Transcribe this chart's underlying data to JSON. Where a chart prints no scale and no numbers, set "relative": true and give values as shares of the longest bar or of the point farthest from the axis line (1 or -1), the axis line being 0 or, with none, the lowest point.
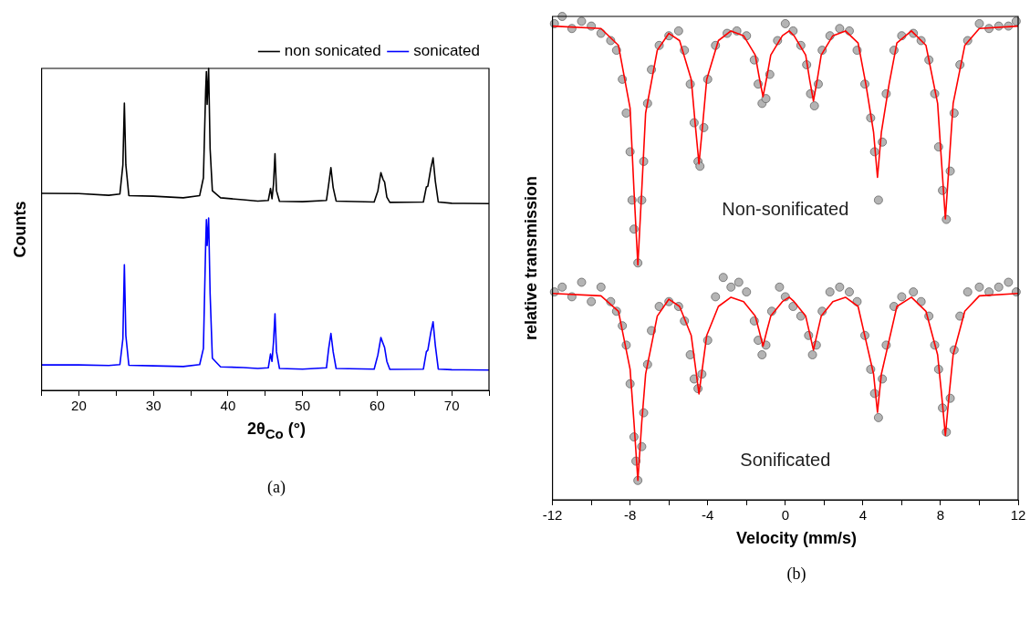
{
  "chart_data": [
    {
      "type": "line",
      "xlabel": "2θ$_{Co}$ (°)",
      "ylabel": "Counts",
      "relative": true,
      "legend": "top right",
      "xlim": [
        15,
        75
      ],
      "xticks": [
        {
          "value": 15,
          "label": null
        },
        20,
        {
          "value": 25,
          "label": null
        },
        30,
        {
          "value": 35,
          "label": null
        },
        40,
        {
          "value": 45,
          "label": null
        },
        50,
        {
          "value": 55,
          "label": null
        },
        60,
        {
          "value": 65,
          "label": null
        },
        70,
        {
          "value": 75,
          "label": null
        }
      ],
      "x": [
        15,
        20,
        24,
        25.5,
        25.9,
        26.1,
        26.3,
        26.7,
        30,
        34,
        36.2,
        36.7,
        37.0,
        37.1,
        37.2,
        37.4,
        37.6,
        37.9,
        39,
        42,
        44,
        45.4,
        45.7,
        45.9,
        46.1,
        46.3,
        46.5,
        46.9,
        50,
        53.2,
        53.5,
        53.8,
        54.1,
        54.5,
        59.6,
        60.1,
        60.5,
        60.8,
        61.0,
        61.3,
        61.7,
        66.2,
        66.6,
        66.8,
        67.2,
        67.5,
        67.8,
        68.2,
        70,
        75
      ],
      "series": [
        {
          "name": "non sonicated",
          "color": "#000000",
          "marker": "none",
          "values": [
            0.612,
            0.611,
            0.606,
            0.61,
            0.7,
            0.892,
            0.7,
            0.605,
            0.603,
            0.598,
            0.605,
            0.66,
            0.93,
            0.99,
            0.888,
            1.0,
            0.75,
            0.62,
            0.598,
            0.592,
            0.588,
            0.59,
            0.627,
            0.595,
            0.64,
            0.735,
            0.62,
            0.587,
            0.586,
            0.59,
            0.64,
            0.692,
            0.63,
            0.588,
            0.585,
            0.62,
            0.676,
            0.655,
            0.647,
            0.6,
            0.584,
            0.585,
            0.632,
            0.634,
            0.69,
            0.722,
            0.65,
            0.585,
            0.581,
            0.58
          ]
        },
        {
          "name": "sonicated",
          "color": "#0000ff",
          "marker": "none",
          "values": [
            0.079,
            0.079,
            0.077,
            0.08,
            0.16,
            0.39,
            0.17,
            0.078,
            0.076,
            0.074,
            0.08,
            0.13,
            0.45,
            0.53,
            0.45,
            0.535,
            0.3,
            0.1,
            0.073,
            0.071,
            0.068,
            0.07,
            0.113,
            0.09,
            0.15,
            0.238,
            0.12,
            0.068,
            0.066,
            0.07,
            0.13,
            0.177,
            0.12,
            0.068,
            0.066,
            0.11,
            0.164,
            0.145,
            0.133,
            0.09,
            0.065,
            0.066,
            0.12,
            0.125,
            0.18,
            0.213,
            0.14,
            0.066,
            0.064,
            0.063
          ]
        }
      ],
      "annotations": [
        "(a)"
      ]
    },
    {
      "type": "scatter",
      "xlabel": "Velocity (mm/s)",
      "ylabel": "relative transmission",
      "relative": true,
      "legend": false,
      "xlim": [
        -12,
        12
      ],
      "xticks": [
        -12,
        {
          "value": -10,
          "label": null
        },
        -8,
        {
          "value": -6,
          "label": null
        },
        -4,
        {
          "value": -2,
          "label": null
        },
        0,
        {
          "value": 2,
          "label": null
        },
        4,
        {
          "value": 6,
          "label": null
        },
        8,
        {
          "value": 10,
          "label": null
        },
        12
      ],
      "series": [
        {
          "color": "#b4b4b4",
          "marker": "circle",
          "x": [
            -11.9,
            -11.5,
            -11.0,
            -10.5,
            -10.0,
            -9.5,
            -9.0,
            -8.7,
            -8.4,
            -8.2,
            -8.0,
            -7.9,
            -7.8,
            -7.6,
            -7.4,
            -7.3,
            -7.1,
            -6.9,
            -6.5,
            -6.0,
            -5.5,
            -5.2,
            -4.9,
            -4.7,
            -4.5,
            -4.4,
            -4.2,
            -4.0,
            -3.6,
            -3.0,
            -2.5,
            -2.0,
            -1.6,
            -1.4,
            -1.2,
            -1.0,
            -0.8,
            -0.4,
            0,
            0.4,
            0.8,
            1.1,
            1.3,
            1.5,
            1.7,
            1.9,
            2.3,
            2.8,
            3.3,
            3.7,
            4.1,
            4.4,
            4.6,
            4.8,
            5.0,
            5.2,
            5.6,
            6.0,
            6.6,
            7.0,
            7.4,
            7.7,
            7.9,
            8.1,
            8.3,
            8.5,
            8.7,
            9.0,
            9.4,
            10.0,
            10.5,
            11.0,
            11.5,
            11.9
          ],
          "values": [
            0.985,
            1.0,
            0.975,
            0.99,
            0.98,
            0.965,
            0.95,
            0.93,
            0.87,
            0.8,
            0.72,
            0.62,
            0.56,
            0.49,
            0.62,
            0.7,
            0.82,
            0.89,
            0.94,
            0.96,
            0.97,
            0.93,
            0.86,
            0.78,
            0.7,
            0.69,
            0.77,
            0.87,
            0.94,
            0.965,
            0.97,
            0.96,
            0.91,
            0.86,
            0.82,
            0.83,
            0.88,
            0.95,
            0.985,
            0.97,
            0.94,
            0.9,
            0.84,
            0.815,
            0.86,
            0.93,
            0.96,
            0.975,
            0.97,
            0.93,
            0.86,
            0.79,
            0.72,
            0.62,
            0.74,
            0.84,
            0.93,
            0.96,
            0.965,
            0.95,
            0.91,
            0.84,
            0.73,
            0.64,
            0.58,
            0.68,
            0.8,
            0.9,
            0.95,
            0.985,
            0.975,
            0.98,
            0.98,
            0.99
          ]
        },
        {
          "color": "#b4b4b4",
          "marker": "circle",
          "x": [
            -11.9,
            -11.5,
            -11.0,
            -10.5,
            -10.0,
            -9.5,
            -9.0,
            -8.7,
            -8.4,
            -8.2,
            -8.0,
            -7.8,
            -7.7,
            -7.6,
            -7.4,
            -7.3,
            -7.1,
            -6.9,
            -6.5,
            -6.0,
            -5.5,
            -5.2,
            -4.9,
            -4.7,
            -4.5,
            -4.3,
            -4.0,
            -3.6,
            -3.2,
            -2.8,
            -2.4,
            -2.0,
            -1.6,
            -1.4,
            -1.2,
            -1.0,
            -0.7,
            -0.3,
            0,
            0.4,
            0.8,
            1.2,
            1.4,
            1.6,
            1.9,
            2.3,
            2.8,
            3.3,
            3.7,
            4.1,
            4.4,
            4.6,
            4.8,
            5.0,
            5.2,
            5.6,
            6.0,
            6.6,
            7.0,
            7.4,
            7.7,
            7.9,
            8.1,
            8.3,
            8.5,
            8.7,
            9.0,
            9.4,
            10.0,
            10.5,
            11.0,
            11.5,
            11.9
          ],
          "values": [
            0.43,
            0.44,
            0.42,
            0.45,
            0.41,
            0.44,
            0.41,
            0.39,
            0.36,
            0.32,
            0.24,
            0.13,
            0.08,
            0.04,
            0.11,
            0.18,
            0.28,
            0.35,
            0.4,
            0.41,
            0.4,
            0.37,
            0.3,
            0.25,
            0.23,
            0.26,
            0.33,
            0.42,
            0.46,
            0.44,
            0.45,
            0.43,
            0.37,
            0.33,
            0.3,
            0.32,
            0.39,
            0.44,
            0.42,
            0.4,
            0.38,
            0.34,
            0.3,
            0.32,
            0.39,
            0.43,
            0.44,
            0.43,
            0.41,
            0.34,
            0.27,
            0.22,
            0.17,
            0.25,
            0.32,
            0.4,
            0.42,
            0.43,
            0.41,
            0.38,
            0.32,
            0.27,
            0.19,
            0.14,
            0.21,
            0.31,
            0.38,
            0.43,
            0.44,
            0.43,
            0.44,
            0.45,
            0.43
          ]
        },
        {
          "type": "line",
          "color": "#ff0000",
          "marker": "none",
          "x": [
            -12,
            -9.5,
            -8.6,
            -8.0,
            -7.8,
            -7.6,
            -7.4,
            -7.2,
            -6.6,
            -6.0,
            -5.45,
            -4.85,
            -4.65,
            -4.45,
            -4.25,
            -4.05,
            -3.45,
            -2.8,
            -2.15,
            -1.55,
            -1.35,
            -1.15,
            -0.95,
            -0.75,
            -0.15,
            0.2,
            0.45,
            1.05,
            1.25,
            1.45,
            1.65,
            1.85,
            2.45,
            3.1,
            3.75,
            4.15,
            4.55,
            4.75,
            4.95,
            5.35,
            5.75,
            6.5,
            7.25,
            7.85,
            8.05,
            8.25,
            8.45,
            8.65,
            9.25,
            10,
            12
          ],
          "values": [
            0.98,
            0.975,
            0.94,
            0.81,
            0.64,
            0.486,
            0.64,
            0.8,
            0.93,
            0.965,
            0.95,
            0.87,
            0.78,
            0.695,
            0.78,
            0.87,
            0.95,
            0.97,
            0.96,
            0.92,
            0.875,
            0.834,
            0.875,
            0.92,
            0.96,
            0.97,
            0.96,
            0.92,
            0.87,
            0.825,
            0.87,
            0.92,
            0.96,
            0.97,
            0.945,
            0.86,
            0.76,
            0.667,
            0.76,
            0.86,
            0.945,
            0.97,
            0.94,
            0.82,
            0.7,
            0.581,
            0.7,
            0.82,
            0.94,
            0.975,
            0.98
          ]
        },
        {
          "type": "line",
          "color": "#ff0000",
          "marker": "none",
          "x": [
            -12,
            -9.5,
            -8.6,
            -8.0,
            -7.8,
            -7.6,
            -7.4,
            -7.2,
            -6.6,
            -6.0,
            -5.45,
            -4.85,
            -4.65,
            -4.45,
            -4.25,
            -4.05,
            -3.45,
            -2.8,
            -2.15,
            -1.55,
            -1.35,
            -1.15,
            -0.95,
            -0.75,
            -0.15,
            0.2,
            0.45,
            1.05,
            1.25,
            1.45,
            1.65,
            1.85,
            2.45,
            3.1,
            3.75,
            4.15,
            4.55,
            4.75,
            4.95,
            5.35,
            5.75,
            6.5,
            7.25,
            7.85,
            8.05,
            8.25,
            8.45,
            8.65,
            9.25,
            10,
            12
          ],
          "values": [
            0.427,
            0.422,
            0.39,
            0.27,
            0.16,
            0.04,
            0.16,
            0.26,
            0.38,
            0.415,
            0.4,
            0.34,
            0.28,
            0.219,
            0.28,
            0.34,
            0.4,
            0.419,
            0.41,
            0.38,
            0.35,
            0.318,
            0.35,
            0.38,
            0.41,
            0.419,
            0.41,
            0.38,
            0.345,
            0.31,
            0.345,
            0.38,
            0.41,
            0.419,
            0.4,
            0.33,
            0.26,
            0.181,
            0.26,
            0.33,
            0.4,
            0.419,
            0.39,
            0.3,
            0.22,
            0.133,
            0.22,
            0.3,
            0.39,
            0.422,
            0.427
          ]
        }
      ],
      "annotations": [
        "Non-sonificated",
        "Sonificated",
        "(b)"
      ]
    }
  ]
}
